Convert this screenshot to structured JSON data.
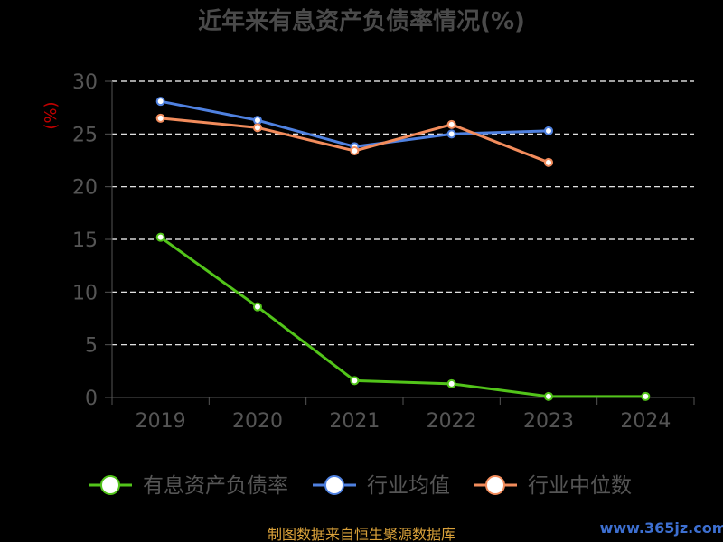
{
  "chart_data": {
    "type": "line",
    "title": "近年来有息资产负债率情况(%)",
    "ylabel": "(%)",
    "ylim": [
      0,
      30
    ],
    "yticks": [
      "30",
      "25",
      "20",
      "15",
      "10",
      "5",
      "0"
    ],
    "categories": [
      "2019",
      "2020",
      "2021",
      "2022",
      "2023",
      "2024"
    ],
    "grid": true,
    "legend_position": "bottom",
    "series": [
      {
        "name": "有息资产负债率",
        "color": "#52c41a",
        "values": [
          15.2,
          8.6,
          1.6,
          1.3,
          0.1,
          0.1
        ]
      },
      {
        "name": "行业均值",
        "color": "#4f81e0",
        "values": [
          28.1,
          26.3,
          23.8,
          25.0,
          25.3,
          null
        ]
      },
      {
        "name": "行业中位数",
        "color": "#f28c5c",
        "values": [
          26.5,
          25.6,
          23.4,
          25.9,
          22.3,
          null
        ]
      }
    ]
  },
  "source": "制图数据来自恒生聚源数据库",
  "watermark": "www.365jz.com"
}
